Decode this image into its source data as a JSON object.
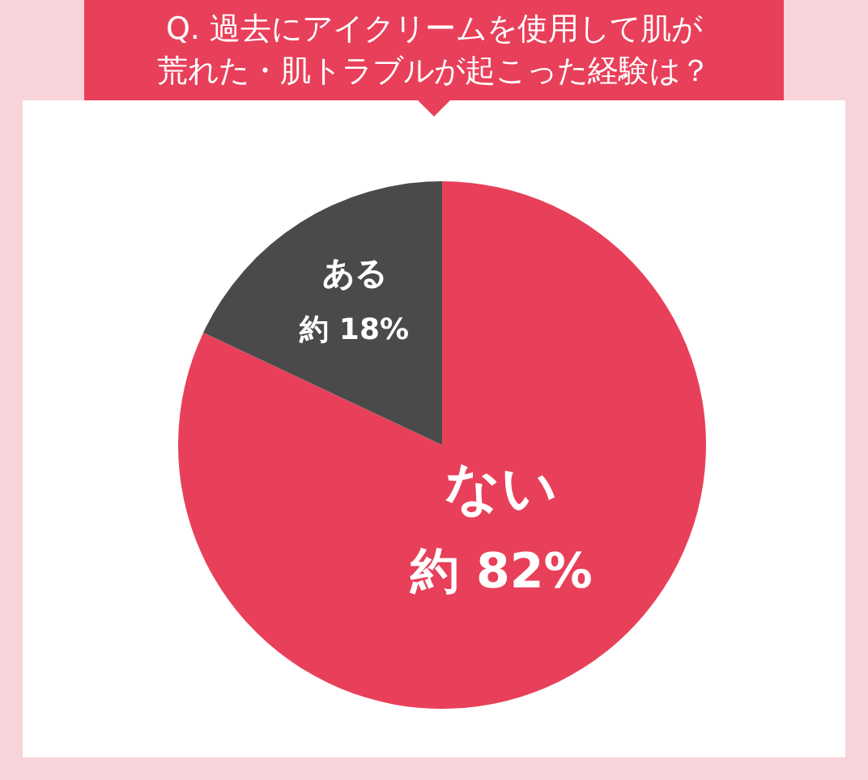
{
  "chart_data": {
    "type": "pie",
    "title": "Q. 過去にアイクリームを使用して肌が荒れた・肌トラブルが起こった経験は？",
    "categories": [
      "ない",
      "ある"
    ],
    "values": [
      82,
      18
    ],
    "value_labels": [
      "約 82%",
      "約 18%"
    ],
    "colors": [
      "#e8405a",
      "#4a4a4a"
    ]
  }
}
